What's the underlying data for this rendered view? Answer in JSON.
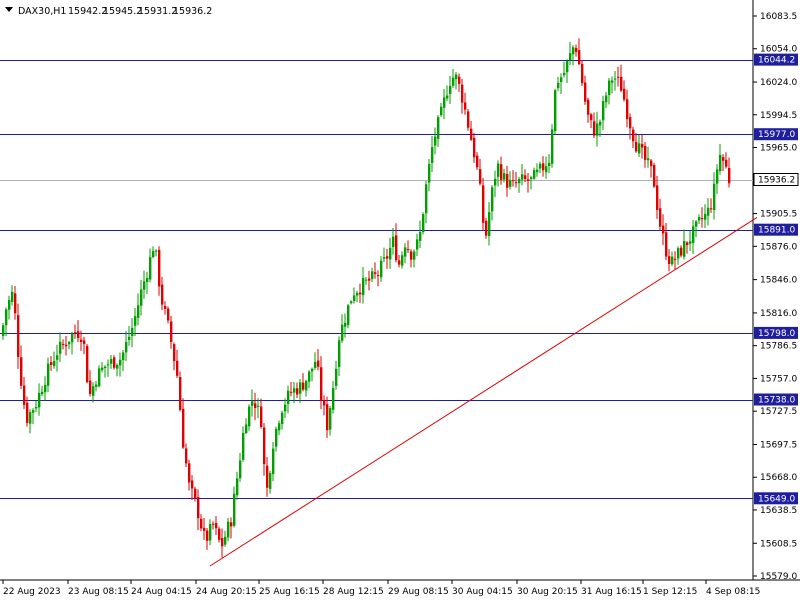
{
  "chart_data": {
    "type": "candlestick",
    "symbol": "DAX30,H1",
    "ohlc_label": [
      "15942.2",
      "15945.2",
      "15931.2",
      "15936.2"
    ],
    "price_axis_ticks": [
      16083.5,
      16054.0,
      16024.0,
      15994.5,
      15965.0,
      15935.5,
      15905.5,
      15876.0,
      15846.0,
      15816.0,
      15786.5,
      15757.0,
      15727.5,
      15697.5,
      15668.0,
      15638.5,
      15608.5,
      15579.0
    ],
    "price_axis_labels": [
      "16083.5",
      "16054.0",
      "16024.0",
      "15994.5",
      "15965.0",
      "15935.5",
      "15905.5",
      "15876.0",
      "15846.0",
      "15816.0",
      "15786.5",
      "15757.0",
      "15727.5",
      "15697.5",
      "15668.0",
      "15638.5",
      "15608.5",
      "15579.0"
    ],
    "time_axis_labels": [
      "22 Aug 2023",
      "23 Aug 08:15",
      "24 Aug 04:15",
      "24 Aug 20:15",
      "25 Aug 16:15",
      "28 Aug 12:15",
      "29 Aug 08:15",
      "30 Aug 04:15",
      "30 Aug 20:15",
      "31 Aug 16:15",
      "1 Sep 12:15",
      "4 Sep 08:15"
    ],
    "levels": [
      {
        "value": 16044.2,
        "label": "16044.2"
      },
      {
        "value": 15977.0,
        "label": "15977.0"
      },
      {
        "value": 15891.0,
        "label": "15891.0"
      },
      {
        "value": 15798.0,
        "label": "15798.0"
      },
      {
        "value": 15738.0,
        "label": "15738.0"
      },
      {
        "value": 15649.0,
        "label": "15649.0"
      }
    ],
    "current_price": {
      "value": 15936.2,
      "label": "15936.2"
    },
    "trendline": {
      "from": {
        "time": "24 Aug 20:15",
        "price": 15588
      },
      "to": {
        "time": "4 Sep 08:15",
        "price": 15902
      }
    },
    "ylim": [
      15570,
      16097
    ],
    "colors": {
      "bull": "#00a000",
      "bear": "#e00000",
      "level": "#1e1e9e",
      "trend": "#e00000",
      "current": "#b0b0b0"
    }
  }
}
